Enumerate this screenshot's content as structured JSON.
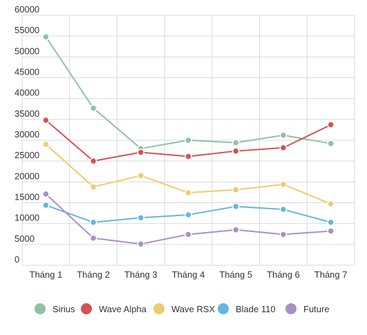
{
  "chart_data": {
    "type": "line",
    "title": "",
    "xlabel": "",
    "ylabel": "",
    "categories": [
      "Tháng 1",
      "Tháng 2",
      "Tháng 3",
      "Tháng 4",
      "Tháng 5",
      "Tháng 6",
      "Tháng 7"
    ],
    "ylim": [
      0,
      60000
    ],
    "yticks": [
      "0",
      "5000",
      "10000",
      "15000",
      "20000",
      "25000",
      "30000",
      "35000",
      "40000",
      "45000",
      "50000",
      "55000",
      "60000"
    ],
    "grid": true,
    "legend_position": "bottom",
    "series": [
      {
        "name": "Sirius",
        "color": "#8cc4a3",
        "values": [
          54800,
          37700,
          28000,
          30000,
          29400,
          31200,
          29200
        ]
      },
      {
        "name": "Wave Alpha",
        "color": "#d05455",
        "values": [
          34800,
          25000,
          27100,
          26100,
          27400,
          28200,
          33700
        ]
      },
      {
        "name": "Wave RSX",
        "color": "#efcb6c",
        "values": [
          29000,
          18800,
          21500,
          17400,
          18100,
          19400,
          14700
        ]
      },
      {
        "name": "Blade 110",
        "color": "#62b7e0",
        "values": [
          14400,
          10300,
          11400,
          12100,
          14100,
          13400,
          10300
        ]
      },
      {
        "name": "Future",
        "color": "#a98fc7",
        "values": [
          17100,
          6500,
          5100,
          7400,
          8500,
          7400,
          8200
        ]
      }
    ]
  }
}
